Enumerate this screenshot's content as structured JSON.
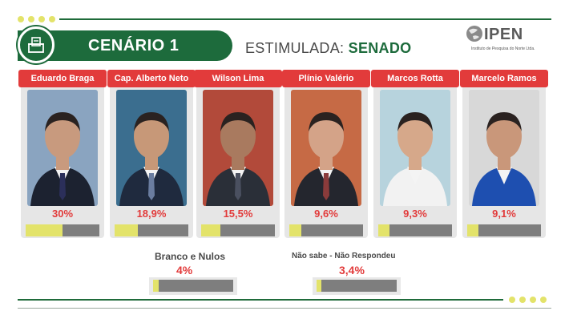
{
  "header": {
    "title": "CENÁRIO 1",
    "subtitle_prefix": "ESTIMULADA:",
    "subtitle_highlight": "SENADO"
  },
  "logo": {
    "name": "IPEN",
    "tagline": "Instituto de Pesquisa do Norte Ltda."
  },
  "candidates": [
    {
      "name": "Eduardo Braga",
      "percent": "30%",
      "value": 30.0
    },
    {
      "name": "Cap. Alberto Neto",
      "percent": "18,9%",
      "value": 18.9
    },
    {
      "name": "Wilson Lima",
      "percent": "15,5%",
      "value": 15.5
    },
    {
      "name": "Plínio Valério",
      "percent": "9,6%",
      "value": 9.6
    },
    {
      "name": "Marcos Rotta",
      "percent": "9,3%",
      "value": 9.3
    },
    {
      "name": "Marcelo Ramos",
      "percent": "9,1%",
      "value": 9.1
    }
  ],
  "others": [
    {
      "label": "Branco e Nulos",
      "percent": "4%",
      "value": 4.0
    },
    {
      "label": "Não sabe - Não Respondeu",
      "percent": "3,4%",
      "value": 3.4
    }
  ],
  "colors": {
    "green": "#1d6b3c",
    "red": "#e23b3b",
    "bar_fill": "#e3e36a",
    "bar_track": "#7e7e7e"
  }
}
